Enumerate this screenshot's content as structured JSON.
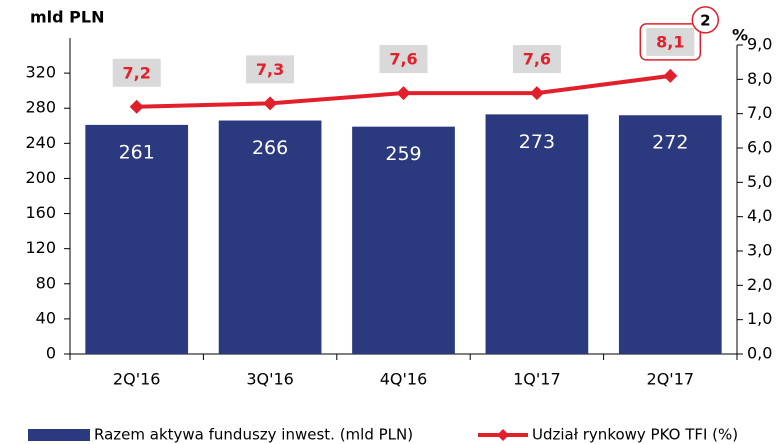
{
  "chart_data": {
    "type": "bar-line",
    "y_label": "mld PLN",
    "y2_label": "%",
    "annotation": "2",
    "categories": [
      "2Q'16",
      "3Q'16",
      "4Q'16",
      "1Q'17",
      "2Q'17"
    ],
    "series": [
      {
        "name": "Razem aktywa funduszy inwest. (mld PLN)",
        "color": "#2b3a7e",
        "type": "bar",
        "values": [
          261,
          266,
          259,
          273,
          272
        ]
      },
      {
        "name": "Udział rynkowy PKO TFI (%)",
        "color": "#e2202c",
        "type": "line",
        "axis": "y2",
        "values": [
          7.2,
          7.3,
          7.6,
          7.6,
          8.1
        ],
        "value_labels": [
          "7,2",
          "7,3",
          "7,6",
          "7,6",
          "8,1"
        ]
      }
    ],
    "ylim": [
      0,
      360
    ],
    "yticks": [
      0,
      40,
      80,
      120,
      160,
      200,
      240,
      280,
      320
    ],
    "y2lim": [
      0,
      9
    ],
    "y2ticks": [
      {
        "value": 0,
        "label": "0,0"
      },
      {
        "value": 1,
        "label": "1,0"
      },
      {
        "value": 2,
        "label": "2,0"
      },
      {
        "value": 3,
        "label": "3,0"
      },
      {
        "value": 4,
        "label": "4,0"
      },
      {
        "value": 5,
        "label": "5,0"
      },
      {
        "value": 6,
        "label": "6,0"
      },
      {
        "value": 7,
        "label": "7,0"
      },
      {
        "value": 8,
        "label": "8,0"
      },
      {
        "value": 9,
        "label": "9,0"
      }
    ]
  }
}
